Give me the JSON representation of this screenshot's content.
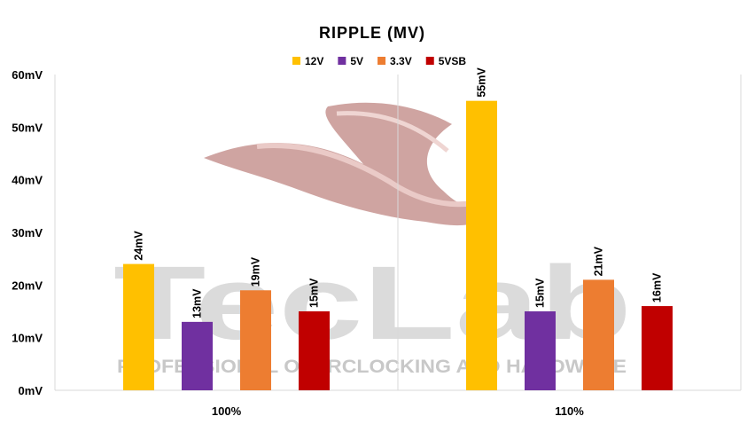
{
  "chart_data": {
    "type": "bar",
    "title": "RIPPLE (MV)",
    "categories": [
      "100%",
      "110%"
    ],
    "series": [
      {
        "name": "12V",
        "color": "#FFC000",
        "values": [
          24,
          55
        ],
        "labels": [
          "24mV",
          "55mV"
        ]
      },
      {
        "name": "5V",
        "color": "#7030A0",
        "values": [
          13,
          15
        ],
        "labels": [
          "13mV",
          "15mV"
        ]
      },
      {
        "name": "3.3V",
        "color": "#ED7D31",
        "values": [
          19,
          21
        ],
        "labels": [
          "19mV",
          "21mV"
        ]
      },
      {
        "name": "5VSB",
        "color": "#C00000",
        "values": [
          15,
          16
        ],
        "labels": [
          "15mV",
          "16mV"
        ]
      }
    ],
    "ylim": [
      0,
      60
    ],
    "yticks": [
      0,
      10,
      20,
      30,
      40,
      50,
      60
    ],
    "ytick_labels": [
      "0mV",
      "10mV",
      "20mV",
      "30mV",
      "40mV",
      "50mV",
      "60mV"
    ],
    "legend_position": "top",
    "grid": false
  },
  "watermark": {
    "logo": "TecLab",
    "tagline": "PROFESSIONAL OVERCLOCKING AND HARDWARE"
  }
}
